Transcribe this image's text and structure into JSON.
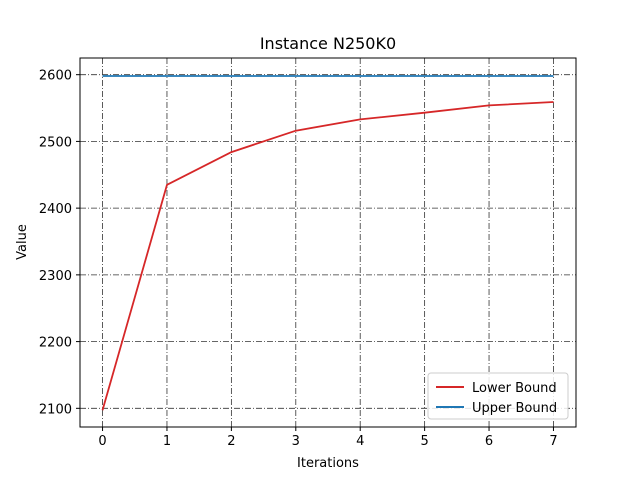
{
  "chart_data": {
    "type": "line",
    "title": "Instance N250K0",
    "xlabel": "Iterations",
    "ylabel": "Value",
    "x": [
      0,
      1,
      2,
      3,
      4,
      5,
      6,
      7
    ],
    "xlim": [
      -0.35,
      7.35
    ],
    "ylim": [
      2072,
      2625
    ],
    "xticks": [
      0,
      1,
      2,
      3,
      4,
      5,
      6,
      7
    ],
    "yticks": [
      2100,
      2200,
      2300,
      2400,
      2500,
      2600
    ],
    "grid": true,
    "legend_position": "lower-right",
    "series": [
      {
        "name": "Lower Bound",
        "color": "#d62728",
        "values": [
          2097,
          2435,
          2484,
          2516,
          2533,
          2543,
          2554,
          2559
        ]
      },
      {
        "name": "Upper Bound",
        "color": "#1f77b4",
        "values": [
          2598,
          2598,
          2598,
          2598,
          2598,
          2598,
          2598,
          2598
        ]
      }
    ]
  }
}
